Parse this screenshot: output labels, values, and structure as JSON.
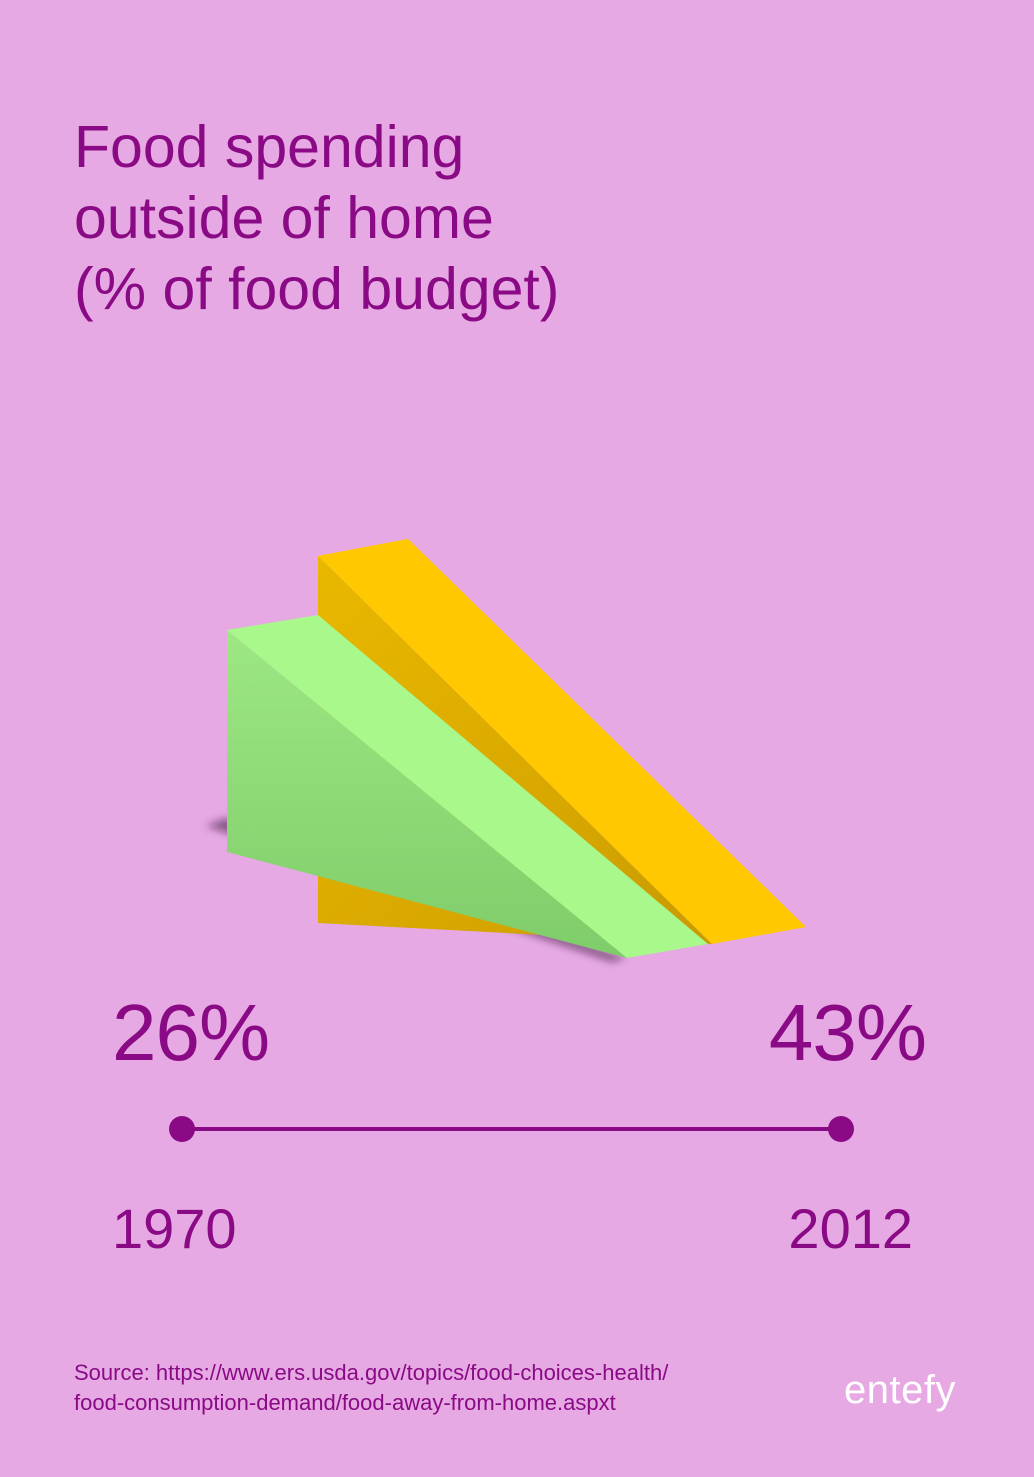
{
  "title_lines": [
    "Food spending",
    "outside of home",
    "(% of food budget)"
  ],
  "chart_data": {
    "type": "area",
    "title": "Food spending outside of home (% of food budget)",
    "unit": "% of food budget",
    "x": [
      "1970",
      "2012"
    ],
    "values": [
      26,
      43
    ],
    "value_labels": [
      "26%",
      "43%"
    ],
    "series_colors": [
      "#a8f88c",
      "#ffc800"
    ]
  },
  "timeline": {
    "start_label": "1970",
    "end_label": "2012",
    "line_color": "#8a0a86"
  },
  "source_lines": [
    "Source: https://www.ers.usda.gov/topics/food-choices-health/",
    "food-consumption-demand/food-away-from-home.aspxt"
  ],
  "brand": "entefy",
  "colors": {
    "background": "#e6a9e3",
    "text": "#8a0a86",
    "brand_text": "#ffffff"
  }
}
